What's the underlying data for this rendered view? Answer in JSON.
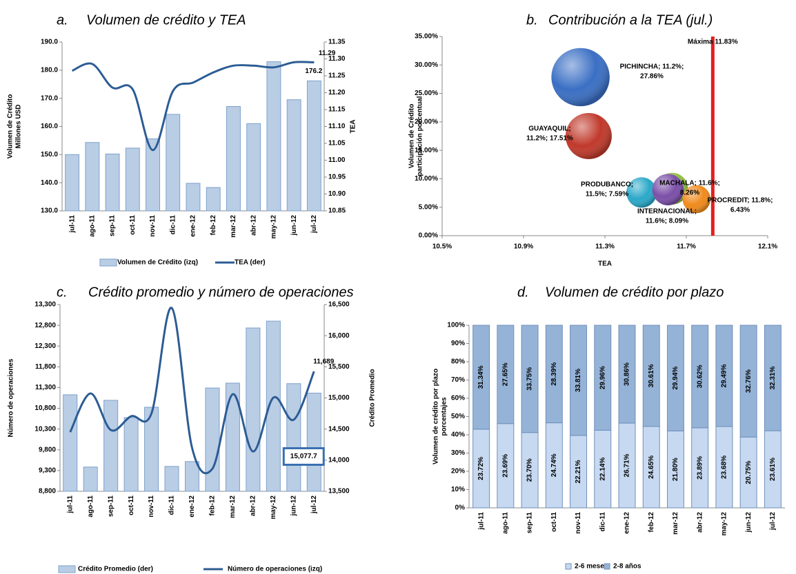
{
  "chart_data": [
    {
      "type": "combo",
      "label": "a.",
      "title": "Volumen de crédito y TEA",
      "categories": [
        "jul-11",
        "ago-11",
        "sep-11",
        "oct-11",
        "nov-11",
        "dic-11",
        "ene-12",
        "feb-12",
        "mar-12",
        "abr-12",
        "may-12",
        "jun-12",
        "jul-12"
      ],
      "series": [
        {
          "name": "Volumen de Crédito (izq)",
          "type": "bar",
          "axis": "y",
          "color": "#b9cde5",
          "values": [
            150.0,
            154.3,
            150.2,
            152.3,
            155.6,
            164.3,
            139.8,
            138.3,
            167.1,
            161.0,
            183.0,
            169.5,
            176.2
          ],
          "value_labels": [
            null,
            null,
            null,
            null,
            null,
            null,
            null,
            null,
            null,
            null,
            null,
            null,
            "176.2"
          ]
        },
        {
          "name": "TEA (der)",
          "type": "line",
          "axis": "y2",
          "color": "#2c5c94",
          "values": [
            11.265,
            11.285,
            11.215,
            11.21,
            11.03,
            11.205,
            11.23,
            11.26,
            11.28,
            11.28,
            11.275,
            11.29,
            11.29
          ],
          "value_labels": [
            null,
            null,
            null,
            null,
            null,
            null,
            null,
            null,
            null,
            null,
            null,
            null,
            "11.29"
          ]
        }
      ],
      "ylabel": [
        "Volumen de Crédito",
        "Millones USD"
      ],
      "y2label": "TEA",
      "ylim": [
        130,
        190
      ],
      "yticks": [
        {
          "value": 130,
          "label": "130.0"
        },
        {
          "value": 140,
          "label": "140.0"
        },
        {
          "value": 150,
          "label": "150.0"
        },
        {
          "value": 160,
          "label": "160.0"
        },
        {
          "value": 170,
          "label": "170.0"
        },
        {
          "value": 180,
          "label": "180.0"
        },
        {
          "value": 190,
          "label": "190.0"
        }
      ],
      "y2lim": [
        10.85,
        11.35
      ],
      "y2ticks": [
        10.85,
        {
          "value": 10.9,
          "label": "10.90"
        },
        10.95,
        {
          "value": 11,
          "label": "11.00"
        },
        11.05,
        {
          "value": 11.1,
          "label": "11.10"
        },
        11.15,
        {
          "value": 11.2,
          "label": "11.20"
        },
        11.25,
        {
          "value": 11.3,
          "label": "11.30"
        },
        11.35
      ]
    },
    {
      "type": "bubble",
      "label": "b.",
      "title": "Contribución a la TEA (jul.)",
      "xlabel": "TEA",
      "ylabel": [
        "Volumen de Crédito",
        "participación porcentual"
      ],
      "xlim": [
        10.5,
        12.1
      ],
      "xticks": [
        {
          "value": 10.5,
          "label": "10.5%"
        },
        {
          "value": 10.9,
          "label": "10.9%"
        },
        {
          "value": 11.3,
          "label": "11.3%"
        },
        {
          "value": 11.7,
          "label": "11.7%"
        },
        {
          "value": 12.1,
          "label": "12.1%"
        }
      ],
      "ylim": [
        0,
        35
      ],
      "yticks": [
        {
          "value": 0,
          "label": "0.00%"
        },
        {
          "value": 5,
          "label": "5.00%"
        },
        {
          "value": 10,
          "label": "10.00%"
        },
        {
          "value": 15,
          "label": "15.00%"
        },
        {
          "value": 20,
          "label": "20.00%"
        },
        {
          "value": 25,
          "label": "25.00%"
        },
        {
          "value": 30,
          "label": "30.00%"
        },
        {
          "value": 35,
          "label": "35.00%"
        }
      ],
      "points": [
        {
          "label": [
            "PICHINCHA; 11.2%;",
            "27.86%"
          ],
          "x": 11.18,
          "y": 27.86,
          "color": "#3a6fc4"
        },
        {
          "label": [
            "GUAYAQUIL;",
            "11.2%; 17.51%"
          ],
          "x": 11.22,
          "y": 17.51,
          "color": "#c0392b"
        },
        {
          "label": [
            "MACHALA; 11.6%;",
            "8.26%"
          ],
          "x": 11.63,
          "y": 8.26,
          "color": "#8fbf3f"
        },
        {
          "label": [
            "PRODUBANCO;",
            "11.5%; 7.59%"
          ],
          "x": 11.48,
          "y": 7.59,
          "color": "#2aa8c9"
        },
        {
          "label": [
            "PROCREDIT; 11.8%;",
            "6.43%"
          ],
          "x": 11.75,
          "y": 6.43,
          "color": "#f08a1c"
        },
        {
          "label": [
            "INTERNACIONAL;",
            "11.6%; 8.09%"
          ],
          "x": 11.61,
          "y": 8.09,
          "color": "#7b4fa8"
        }
      ],
      "reference": {
        "label": "Máxima 11.83%",
        "x": 11.83,
        "color": "#e02020"
      }
    },
    {
      "type": "combo",
      "label": "c.",
      "title": "Crédito promedio y número de operaciones",
      "categories": [
        "jul-11",
        "ago-11",
        "sep-11",
        "oct-11",
        "nov-11",
        "dic-11",
        "ene-12",
        "feb-12",
        "mar-12",
        "abr-12",
        "may-12",
        "jun-12",
        "jul-12"
      ],
      "series": [
        {
          "name": "Crédito Promedio (der)",
          "type": "bar",
          "axis": "y2",
          "color": "#b9cde5",
          "values": [
            15051,
            13890,
            14962,
            14685,
            14851,
            13900,
            13978,
            15160,
            15238,
            16124,
            16234,
            15230,
            15077.7
          ],
          "value_labels": [
            null,
            null,
            null,
            null,
            null,
            null,
            null,
            null,
            null,
            null,
            null,
            null,
            "15,077.7"
          ]
        },
        {
          "name": "Número de operaciones (izq)",
          "type": "line",
          "axis": "y",
          "color": "#2c5c94",
          "values": [
            10227,
            11157,
            10277,
            10609,
            10676,
            13217,
            9844,
            9346,
            11140,
            9761,
            11057,
            10525,
            11689
          ],
          "value_labels": [
            null,
            null,
            null,
            null,
            null,
            null,
            null,
            null,
            null,
            null,
            null,
            null,
            "11,689"
          ]
        }
      ],
      "ylabel": "Número de operaciones",
      "y2label": "Crédito Promedio",
      "ylim": [
        8800,
        13300
      ],
      "yticks": [
        {
          "value": 8800,
          "label": "8,800"
        },
        {
          "value": 9300,
          "label": "9,300"
        },
        {
          "value": 9800,
          "label": "9,800"
        },
        {
          "value": 10300,
          "label": "10,300"
        },
        {
          "value": 10800,
          "label": "10,800"
        },
        {
          "value": 11300,
          "label": "11,300"
        },
        {
          "value": 11800,
          "label": "11,800"
        },
        {
          "value": 12300,
          "label": "12,300"
        },
        {
          "value": 12800,
          "label": "12,800"
        },
        {
          "value": 13300,
          "label": "13,300"
        }
      ],
      "y2lim": [
        13500,
        16500
      ],
      "y2ticks": [
        {
          "value": 13500,
          "label": "13,500"
        },
        {
          "value": 14000,
          "label": "14,000"
        },
        {
          "value": 14500,
          "label": "14,500"
        },
        {
          "value": 15000,
          "label": "15,000"
        },
        {
          "value": 15500,
          "label": "15,500"
        },
        {
          "value": 16000,
          "label": "16,000"
        },
        {
          "value": 16500,
          "label": "16,500"
        }
      ]
    },
    {
      "type": "bar",
      "stacking": "percent",
      "label": "d.",
      "title": "Volumen de crédito por plazo",
      "categories": [
        "jul-11",
        "ago-11",
        "sep-11",
        "oct-11",
        "nov-11",
        "dic-11",
        "ene-12",
        "feb-12",
        "mar-12",
        "abr-12",
        "may-12",
        "jun-12",
        "jul-12"
      ],
      "series": [
        {
          "name": "2-6 meses",
          "color": "#c6d9f1",
          "values": [
            23.72,
            23.69,
            23.7,
            24.74,
            22.21,
            22.14,
            26.71,
            24.65,
            21.8,
            23.89,
            23.68,
            20.75,
            23.61
          ],
          "value_labels": [
            "23.72%",
            "23.69%",
            "23.70%",
            "24.74%",
            "22.21%",
            "22.14%",
            "26.71%",
            "24.65%",
            "21.80%",
            "23.89%",
            "23.68%",
            "20.75%",
            "23.61%"
          ]
        },
        {
          "name": "2-8 años",
          "color": "#95b3d7",
          "values": [
            31.34,
            27.65,
            33.75,
            28.39,
            33.81,
            29.96,
            30.86,
            30.61,
            29.94,
            30.62,
            29.49,
            32.76,
            32.31
          ],
          "value_labels": [
            "31.34%",
            "27.65%",
            "33.75%",
            "28.39%",
            "33.81%",
            "29.96%",
            "30.86%",
            "30.61%",
            "29.94%",
            "30.62%",
            "29.49%",
            "32.76%",
            "32.31%"
          ]
        }
      ],
      "ylabel": [
        "Volumen de crédito por plazo",
        "porcentajes"
      ],
      "ylim": [
        0,
        100
      ],
      "yticks": [
        {
          "value": 0,
          "label": "0%"
        },
        {
          "value": 10,
          "label": "10%"
        },
        {
          "value": 20,
          "label": "20%"
        },
        {
          "value": 30,
          "label": "30%"
        },
        {
          "value": 40,
          "label": "40%"
        },
        {
          "value": 50,
          "label": "50%"
        },
        {
          "value": 60,
          "label": "60%"
        },
        {
          "value": 70,
          "label": "70%"
        },
        {
          "value": 80,
          "label": "80%"
        },
        {
          "value": 90,
          "label": "90%"
        },
        {
          "value": 100,
          "label": "100%"
        }
      ]
    }
  ]
}
